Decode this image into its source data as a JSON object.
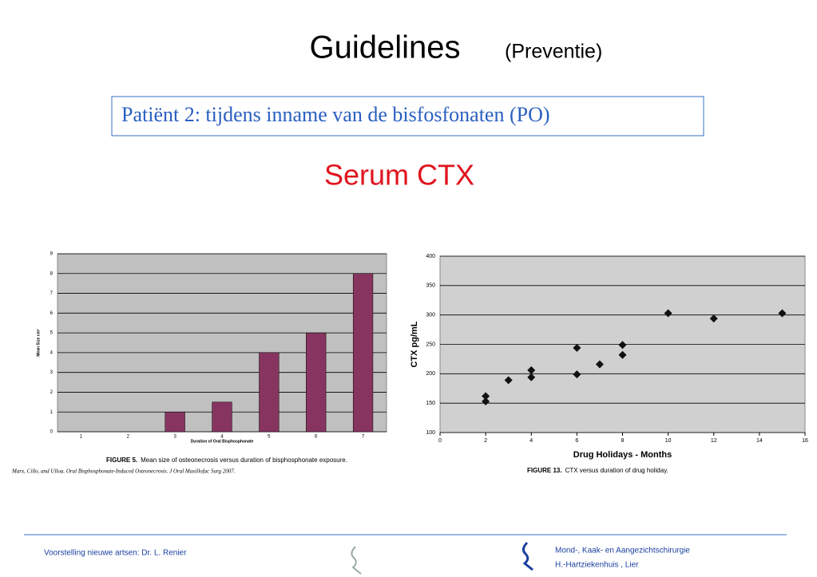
{
  "slide": {
    "title": "Guidelines",
    "title_note": "(Preventie)",
    "box_text": "Patiënt 2: tijdens inname van de bisfosfonaten  (PO)",
    "subtitle": "Serum CTX",
    "footer_left": "Voorstelling nieuwe artsen: Dr. L. Renier",
    "footer_right_1": "Mond-, Kaak- en Aangezichtschirurgie",
    "footer_right_2": "H.-Hartziekenhuis ,   Lier"
  },
  "chart_data": [
    {
      "type": "bar",
      "xlabel": "Duration of Oral Bisphosphonate",
      "ylabel": "Mean Size cm²",
      "categories": [
        "1",
        "2",
        "3",
        "4",
        "5",
        "6",
        "7"
      ],
      "values": [
        0,
        0,
        1,
        1.5,
        4,
        5,
        8
      ],
      "color": "#873560",
      "ylim": [
        0,
        9
      ],
      "yticks": [
        0,
        1,
        2,
        3,
        4,
        5,
        6,
        7,
        8,
        9
      ],
      "grid": true,
      "caption_label": "FIGURE 5.",
      "caption": "Mean size of osteonecrosis versus duration of bisphosphonate exposure.",
      "citation": "Marx, Cillo, and Ulloa. Oral Bisphosphonate-Induced Osteonecrosis. J Oral Maxillofac Surg 2007."
    },
    {
      "type": "scatter",
      "xlabel": "Drug Holidays - Months",
      "ylabel": "CTX pg/mL",
      "x": [
        2,
        2,
        3,
        4,
        4,
        6,
        6,
        7,
        8,
        8,
        10,
        12,
        15
      ],
      "values": [
        162,
        153,
        189,
        206,
        194,
        244,
        199,
        216,
        249,
        232,
        303,
        294,
        303
      ],
      "color": "#111111",
      "xlim": [
        0,
        16
      ],
      "xticks": [
        0,
        2,
        4,
        6,
        8,
        10,
        12,
        14,
        16
      ],
      "ylim": [
        100,
        400
      ],
      "yticks": [
        100,
        150,
        200,
        250,
        300,
        350,
        400
      ],
      "grid": true,
      "caption_label": "FIGURE 13.",
      "caption": "CTX versus duration of drug holiday."
    }
  ]
}
